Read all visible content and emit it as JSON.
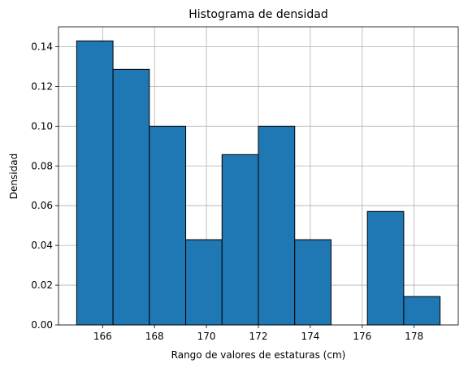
{
  "chart_data": {
    "type": "bar",
    "title": "Histograma de densidad",
    "xlabel": "Rango de valores de estaturas (cm)",
    "ylabel": "Densidad",
    "bin_edges": [
      165,
      166.4,
      167.8,
      169.2,
      170.6,
      172,
      173.4,
      174.8,
      176.2,
      177.6,
      179
    ],
    "values": [
      0.1429,
      0.1286,
      0.1,
      0.0429,
      0.0857,
      0.1,
      0.0429,
      0.0,
      0.0571,
      0.0143
    ],
    "xlim": [
      164.3,
      179.7
    ],
    "ylim": [
      0,
      0.15
    ],
    "xticks": [
      166,
      168,
      170,
      172,
      174,
      176,
      178
    ],
    "xtick_labels": [
      "166",
      "168",
      "170",
      "172",
      "174",
      "176",
      "178"
    ],
    "yticks": [
      0.0,
      0.02,
      0.04,
      0.06,
      0.08,
      0.1,
      0.12,
      0.14
    ],
    "ytick_labels": [
      "0.00",
      "0.02",
      "0.04",
      "0.06",
      "0.08",
      "0.10",
      "0.12",
      "0.14"
    ],
    "grid": true,
    "bar_color": "#1f77b4",
    "edge_color": "#000000",
    "grid_color": "#b0b0b0"
  }
}
